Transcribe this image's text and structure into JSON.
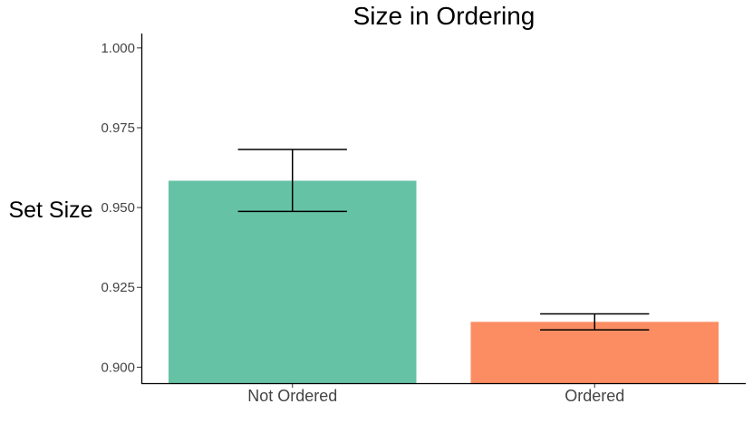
{
  "chart_data": {
    "type": "bar",
    "title": "Size in Ordering",
    "xlabel": "",
    "ylabel": "Set Size",
    "categories": [
      "Not Ordered",
      "Ordered"
    ],
    "values": [
      0.9584,
      0.9142
    ],
    "error_low": [
      0.9488,
      0.9117
    ],
    "error_high": [
      0.9682,
      0.9167
    ],
    "colors": [
      "#66C2A5",
      "#FC8D62"
    ],
    "ylim": [
      0.895,
      1.0045
    ],
    "yticks": [
      0.9,
      0.925,
      0.95,
      0.975,
      1.0
    ],
    "ytick_labels": [
      "0.900",
      "0.925",
      "0.950",
      "0.975",
      "1.000"
    ],
    "grid": false,
    "legend": "none"
  }
}
